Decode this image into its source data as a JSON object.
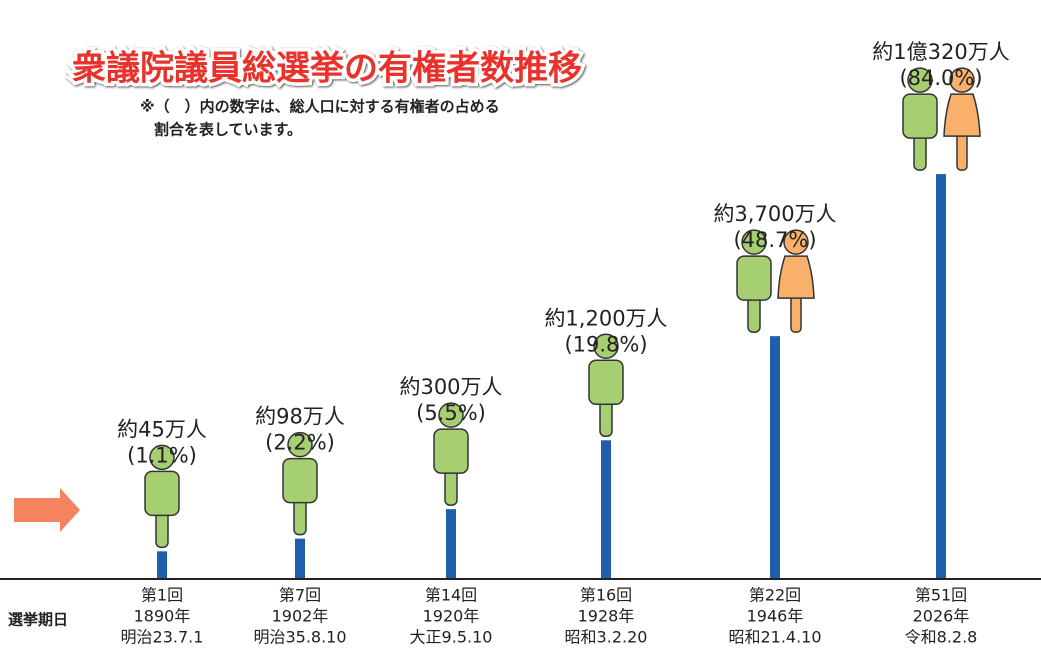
{
  "chart_data": {
    "type": "bar",
    "title": "衆議院議員総選挙の有権者数推移",
    "note": [
      "※（　）内の数字は、総人口に対する有権者の占める",
      "割合を表しています。"
    ],
    "row_label": "選挙期日",
    "categories": [
      "第1回",
      "第7回",
      "第14回",
      "第16回",
      "第22回",
      "第51回"
    ],
    "years": [
      "1890年",
      "1902年",
      "1920年",
      "1928年",
      "1946年",
      "2026年"
    ],
    "dates": [
      "明治23.7.1",
      "明治35.8.10",
      "大正9.5.10",
      "昭和3.2.20",
      "昭和21.4.10",
      "令和8.2.8"
    ],
    "values": [
      45,
      98,
      300,
      1200,
      3700,
      10320
    ],
    "value_labels": [
      "約45万人",
      "約98万人",
      "約300万人",
      "約1,200万人",
      "約3,700万人",
      "約1億320万人"
    ],
    "shares": [
      1.1,
      2.2,
      5.5,
      19.8,
      48.7,
      84.0
    ],
    "share_labels": [
      "(1.1%)",
      "(2.2%)",
      "(5.5%)",
      "(19.8%)",
      "(48.7%)",
      "(84.0%)"
    ],
    "color": "#1f5fad",
    "ylim": [
      0,
      11000
    ],
    "scale": "sqrt"
  }
}
